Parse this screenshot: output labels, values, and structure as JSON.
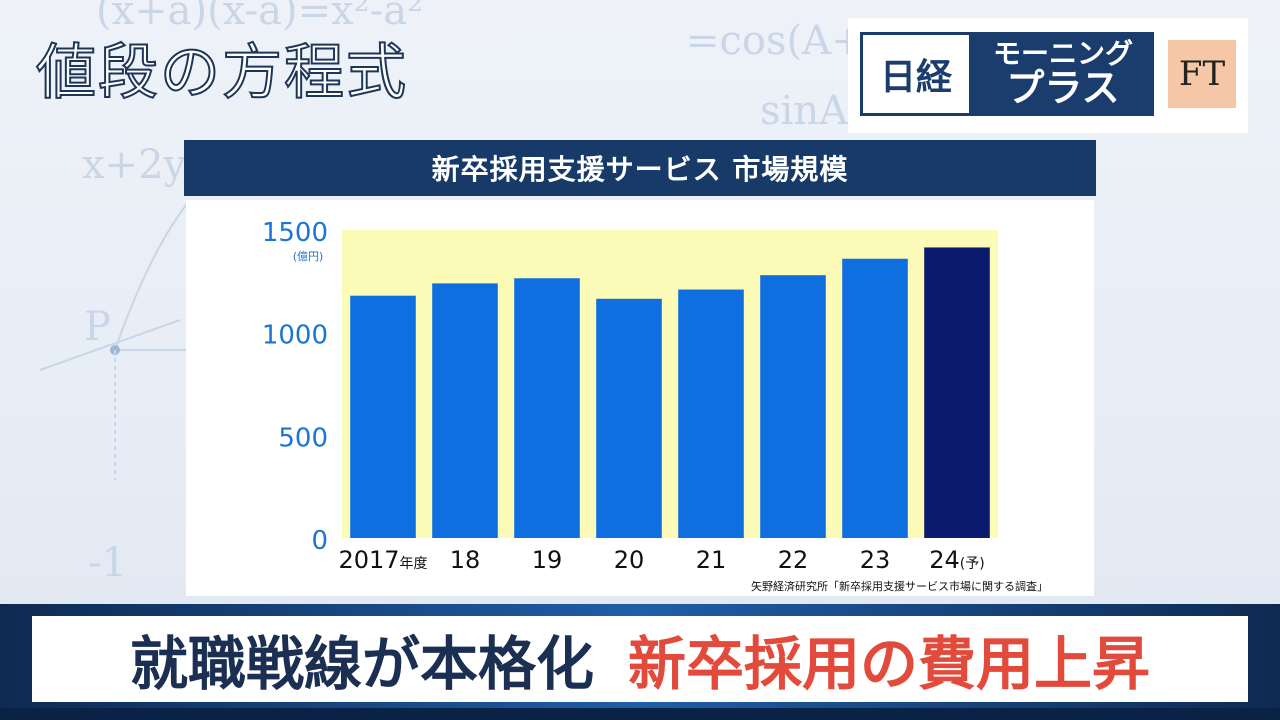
{
  "show": {
    "title": "値段の方程式"
  },
  "logos": {
    "nikkei": "日経",
    "morning_line1": "モーニング",
    "morning_line2": "プラス",
    "ft": "FT"
  },
  "background_formulas": [
    "(x+a)(x-a)=x²-a²",
    "=cos(A+B)",
    "sinA",
    "x+2y",
    "P",
    "-1"
  ],
  "chart_data": {
    "type": "bar",
    "title": "新卒採用支援サービス 市場規模",
    "unit_label": "(億円)",
    "categories": [
      "2017",
      "18",
      "19",
      "20",
      "21",
      "22",
      "23",
      "24"
    ],
    "category_suffixes": [
      "年度",
      "",
      "",
      "",
      "",
      "",
      "",
      "(予)"
    ],
    "values": [
      1180,
      1240,
      1265,
      1165,
      1210,
      1280,
      1360,
      1415
    ],
    "forecast_index": 7,
    "ylim": [
      0,
      1500
    ],
    "yticks": [
      0,
      500,
      1000,
      1500
    ],
    "source": "矢野経済研究所「新卒採用支援サービス市場に関する調査」",
    "colors": {
      "bar": "#0f6fe0",
      "forecast_bar": "#0c1a6e",
      "plot_bg": "#fdfbb8",
      "axis_text": "#1a76d2"
    }
  },
  "caption": {
    "part1": "就職戦線が本格化",
    "part2": "新卒採用の費用上昇"
  }
}
